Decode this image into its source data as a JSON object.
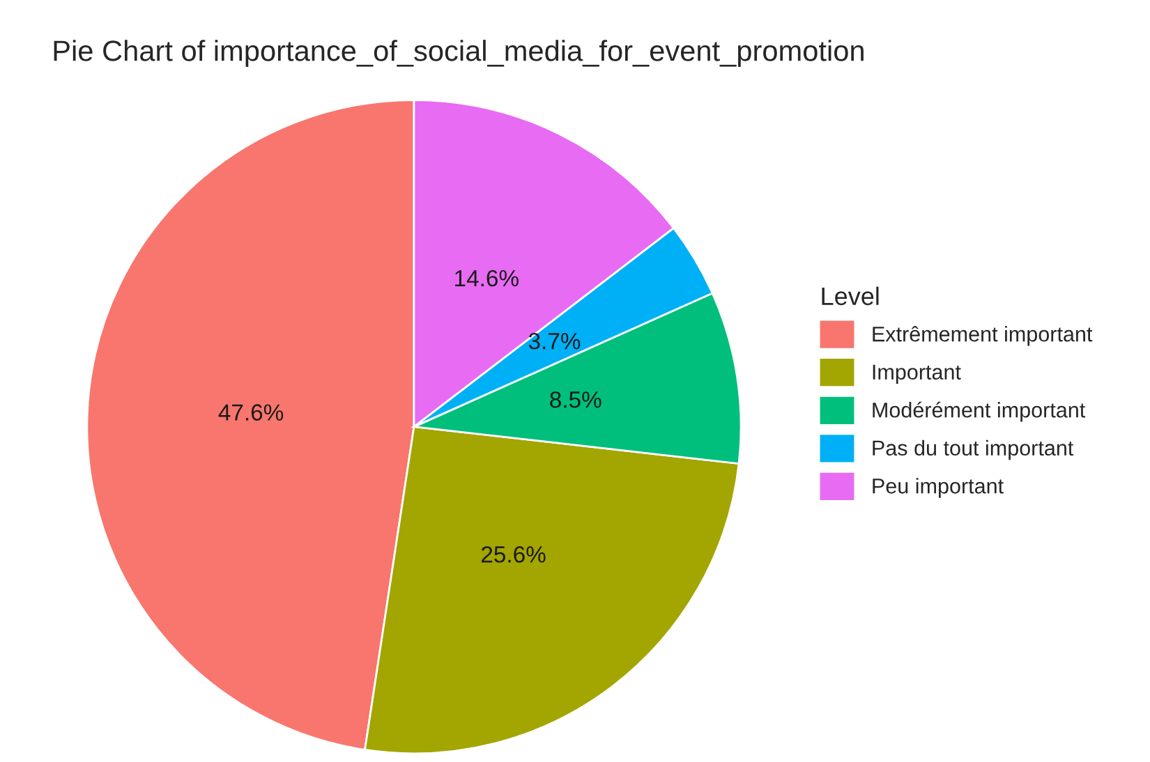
{
  "chart_data": {
    "type": "pie",
    "title": "Pie Chart of importance_of_social_media_for_event_promotion",
    "legend_title": "Level",
    "categories": [
      "Extrêmement important",
      "Important",
      "Modérément important",
      "Pas du tout important",
      "Peu important"
    ],
    "values": [
      47.6,
      25.6,
      8.5,
      3.7,
      14.6
    ],
    "value_labels": [
      "47.6%",
      "25.6%",
      "8.5%",
      "3.7%",
      "14.6%"
    ],
    "colors": [
      "#f8766d",
      "#a3a500",
      "#00bf7d",
      "#00b0f6",
      "#e76bf3"
    ],
    "legend": "right"
  }
}
